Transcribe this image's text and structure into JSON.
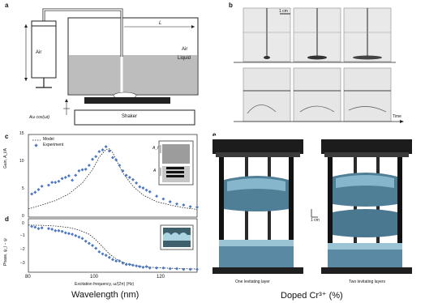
{
  "panel_a": {
    "label": "a",
    "air_syringe": "Air",
    "length": "L",
    "air": "Air",
    "liquid": "Liquid",
    "shaker": "Shaker",
    "forcing": "Aω cos(ωt)"
  },
  "panel_b": {
    "label": "b",
    "scale": "1 cm",
    "time": "Time"
  },
  "panel_c": {
    "label": "c",
    "ylabel": "Gain, A_l/A",
    "legend_model": "Model",
    "legend_experiment": "Experiment",
    "inset_al": "A_l",
    "inset_a": "A",
    "yticks": [
      "0",
      "5",
      "10",
      "15"
    ]
  },
  "panel_d": {
    "label": "d",
    "ylabel": "Phase, ψ_l − ψ",
    "yticks": [
      "0",
      "−1",
      "−2",
      "−3"
    ],
    "xticks": [
      "80",
      "100",
      "120"
    ],
    "xlabel": "Excitation frequency, ω/(2π) (Hz)"
  },
  "panel_e": {
    "label": "e",
    "caption_left": "One levitating layer",
    "caption_right": "Two levitating layers",
    "scale": "1 cm"
  },
  "overlay": {
    "left": "Wavelength (nm)",
    "right": "Doped Cr³⁺ (%)"
  },
  "chart_data": [
    {
      "type": "scatter",
      "panel": "c",
      "xlabel": "Excitation frequency, ω/(2π) (Hz)",
      "ylabel": "Gain, A_l/A",
      "xlim": [
        80,
        130
      ],
      "ylim": [
        0,
        15
      ],
      "series": [
        {
          "name": "Experiment",
          "x": [
            81,
            82,
            83,
            84,
            86,
            87,
            88,
            89,
            90,
            91,
            92,
            93,
            94,
            95,
            96,
            97,
            98,
            99,
            100,
            101,
            102,
            103,
            104,
            105,
            106,
            107,
            108,
            109,
            110,
            111,
            112,
            113,
            114,
            115,
            116,
            118,
            120,
            122,
            124,
            126,
            128,
            130
          ],
          "y": [
            4.2,
            4.5,
            5,
            5.6,
            5.8,
            6.3,
            6.3,
            6.5,
            7,
            7.2,
            7.5,
            6.7,
            7.6,
            8.4,
            8.6,
            8.7,
            9.4,
            10.5,
            11,
            11.9,
            12.2,
            12.8,
            12,
            10.8,
            10.4,
            9.4,
            8.4,
            7.6,
            7.2,
            6.8,
            6.2,
            5.5,
            5.3,
            4.9,
            4.6,
            3.8,
            3.3,
            2.8,
            2.4,
            2.2,
            1.9,
            1.8
          ]
        },
        {
          "name": "Model",
          "x": [
            80,
            84,
            88,
            92,
            96,
            99,
            101,
            103,
            104,
            105,
            106,
            108,
            111,
            114,
            118,
            122,
            126,
            130
          ],
          "y": [
            1.5,
            2.2,
            3.0,
            4.2,
            6.2,
            8.6,
            10.9,
            12.3,
            12.4,
            11.7,
            10.4,
            8.0,
            5.6,
            4.0,
            2.8,
            2.2,
            1.7,
            1.4
          ]
        }
      ]
    },
    {
      "type": "scatter",
      "panel": "d",
      "xlabel": "Excitation frequency, ω/(2π) (Hz)",
      "ylabel": "Phase, ψ_l − ψ",
      "xlim": [
        80,
        130
      ],
      "ylim": [
        -3.4,
        0.4
      ],
      "series": [
        {
          "name": "Experiment",
          "x": [
            81,
            82,
            83,
            84,
            86,
            87,
            88,
            89,
            90,
            91,
            92,
            93,
            94,
            95,
            96,
            97,
            98,
            99,
            100,
            101,
            102,
            103,
            104,
            105,
            106,
            107,
            108,
            109,
            110,
            111,
            112,
            113,
            114,
            115,
            116,
            118,
            120,
            122,
            124,
            126,
            128,
            130
          ],
          "y": [
            -0.15,
            -0.2,
            -0.3,
            -0.25,
            -0.3,
            -0.35,
            -0.45,
            -0.45,
            -0.5,
            -0.6,
            -0.65,
            -0.7,
            -0.8,
            -0.9,
            -1.0,
            -1.2,
            -1.35,
            -1.5,
            -1.7,
            -1.95,
            -2.1,
            -2.2,
            -2.35,
            -2.5,
            -2.6,
            -2.6,
            -2.75,
            -2.85,
            -2.85,
            -2.9,
            -2.95,
            -3.0,
            -3.05,
            -3.0,
            -3.1,
            -3.1,
            -3.1,
            -3.15,
            -3.15,
            -3.2,
            -3.2,
            -3.2
          ]
        },
        {
          "name": "Model",
          "x": [
            80,
            84,
            88,
            92,
            95,
            98,
            100,
            102,
            104,
            106,
            108,
            111,
            114,
            118,
            122,
            126,
            130
          ],
          "y": [
            -0.05,
            -0.07,
            -0.12,
            -0.22,
            -0.4,
            -0.7,
            -1.1,
            -1.6,
            -2.1,
            -2.45,
            -2.7,
            -2.9,
            -3.0,
            -3.08,
            -3.12,
            -3.15,
            -3.17
          ]
        }
      ]
    }
  ]
}
